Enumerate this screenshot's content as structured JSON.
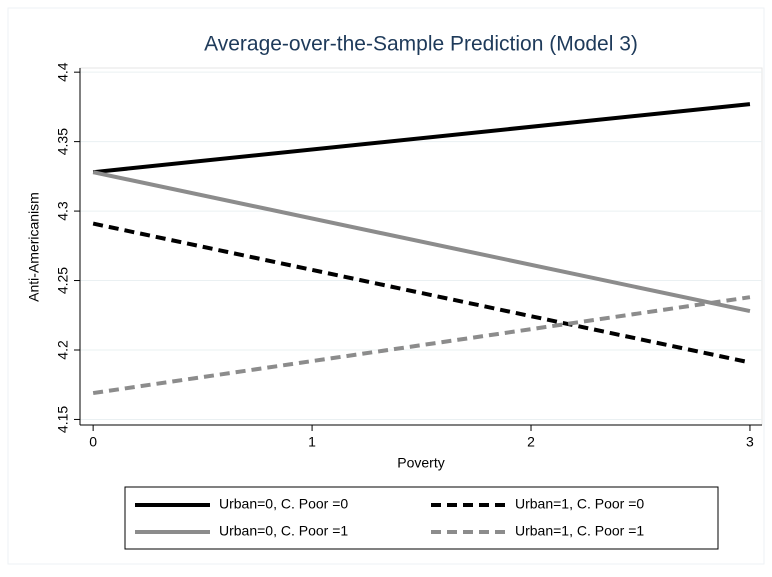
{
  "chart_data": {
    "type": "line",
    "title": "Average-over-the-Sample Prediction (Model 3)",
    "x_label": "Poverty",
    "y_label": "Anti-Americanism",
    "x": [
      0,
      3
    ],
    "series": [
      {
        "name": "Urban=0, C. Poor =0",
        "color": "#000000",
        "dash": false,
        "values": [
          4.328,
          4.377
        ]
      },
      {
        "name": "Urban=1, C. Poor =0",
        "color": "#000000",
        "dash": true,
        "values": [
          4.291,
          4.191
        ]
      },
      {
        "name": "Urban=0, C. Poor =1",
        "color": "#8c8c8c",
        "dash": false,
        "values": [
          4.328,
          4.228
        ]
      },
      {
        "name": "Urban=1, C. Poor =1",
        "color": "#8c8c8c",
        "dash": true,
        "values": [
          4.169,
          4.238
        ]
      }
    ],
    "xlim": [
      -0.06,
      3.055
    ],
    "xticks": [
      0,
      1,
      2,
      3
    ],
    "ylim": [
      4.146,
      4.403
    ],
    "yticks": [
      4.15,
      4.2,
      4.25,
      4.3,
      4.35,
      4.4
    ],
    "grid": true
  }
}
